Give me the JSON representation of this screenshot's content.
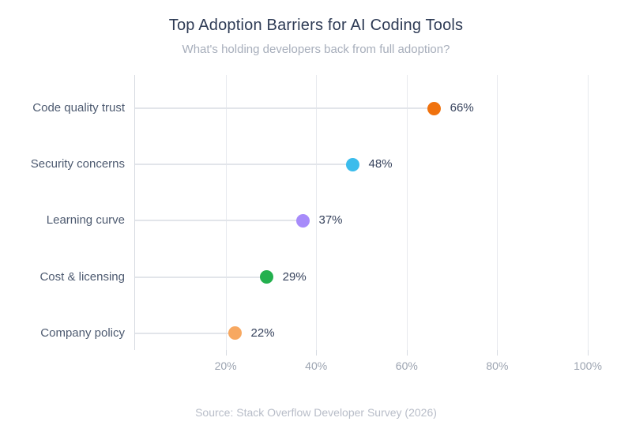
{
  "header": {
    "title": "Top Adoption Barriers for AI Coding Tools",
    "subtitle": "What's holding developers back from full adoption?"
  },
  "footer": {
    "source": "Source: Stack Overflow Developer Survey (2026)"
  },
  "chart_data": {
    "type": "scatter",
    "variant": "horizontal-lollipop",
    "title": "Top Adoption Barriers for AI Coding Tools",
    "subtitle": "What's holding developers back from full adoption?",
    "categories": [
      "Code quality trust",
      "Security concerns",
      "Learning curve",
      "Cost & licensing",
      "Company policy"
    ],
    "values": [
      66,
      48,
      37,
      29,
      22
    ],
    "value_labels": [
      "66%",
      "48%",
      "37%",
      "29%",
      "22%"
    ],
    "point_colors": [
      "#f0720e",
      "#3bbcec",
      "#a78bfa",
      "#23b04e",
      "#f7a861"
    ],
    "xlabel": "",
    "ylabel": "",
    "xlim": [
      0,
      102
    ],
    "x_ticks": [
      20,
      40,
      60,
      80,
      100
    ],
    "x_tick_labels": [
      "20%",
      "40%",
      "60%",
      "80%",
      "100%"
    ],
    "grid": "vertical-only",
    "legend": "none",
    "stem_color": "#e2e5ea",
    "source": "Source: Stack Overflow Developer Survey (2026)"
  }
}
